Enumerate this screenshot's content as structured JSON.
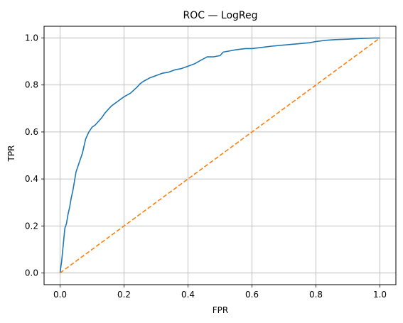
{
  "chart_data": {
    "type": "line",
    "title": "ROC — LogReg",
    "xlabel": "FPR",
    "ylabel": "TPR",
    "xlim": [
      -0.05,
      1.05
    ],
    "ylim": [
      -0.05,
      1.05
    ],
    "xticks": [
      0.0,
      0.2,
      0.4,
      0.6,
      0.8,
      1.0
    ],
    "yticks": [
      0.0,
      0.2,
      0.4,
      0.6,
      0.8,
      1.0
    ],
    "xtick_labels": [
      "0.0",
      "0.2",
      "0.4",
      "0.6",
      "0.8",
      "1.0"
    ],
    "ytick_labels": [
      "0.0",
      "0.2",
      "0.4",
      "0.6",
      "0.8",
      "1.0"
    ],
    "grid": true,
    "series": [
      {
        "color": "#1f77b4",
        "style": "solid",
        "x": [
          0.0,
          0.005,
          0.01,
          0.015,
          0.02,
          0.025,
          0.03,
          0.035,
          0.04,
          0.045,
          0.05,
          0.055,
          0.06,
          0.07,
          0.08,
          0.09,
          0.1,
          0.11,
          0.12,
          0.13,
          0.14,
          0.15,
          0.16,
          0.17,
          0.18,
          0.19,
          0.2,
          0.22,
          0.24,
          0.25,
          0.26,
          0.28,
          0.3,
          0.32,
          0.34,
          0.36,
          0.38,
          0.4,
          0.42,
          0.44,
          0.46,
          0.48,
          0.5,
          0.51,
          0.53,
          0.55,
          0.58,
          0.6,
          0.63,
          0.66,
          0.7,
          0.74,
          0.78,
          0.8,
          0.83,
          0.86,
          0.9,
          0.94,
          0.98,
          1.0
        ],
        "y": [
          0.0,
          0.05,
          0.12,
          0.19,
          0.21,
          0.25,
          0.28,
          0.32,
          0.35,
          0.39,
          0.43,
          0.45,
          0.47,
          0.51,
          0.57,
          0.6,
          0.62,
          0.63,
          0.645,
          0.66,
          0.68,
          0.695,
          0.71,
          0.72,
          0.73,
          0.74,
          0.75,
          0.765,
          0.79,
          0.805,
          0.815,
          0.83,
          0.84,
          0.85,
          0.855,
          0.865,
          0.87,
          0.88,
          0.89,
          0.905,
          0.92,
          0.92,
          0.925,
          0.94,
          0.945,
          0.95,
          0.955,
          0.955,
          0.96,
          0.965,
          0.97,
          0.975,
          0.98,
          0.985,
          0.99,
          0.993,
          0.995,
          0.998,
          1.0,
          1.0
        ]
      },
      {
        "color": "#ff7f0e",
        "style": "dashed",
        "x": [
          0.0,
          1.0
        ],
        "y": [
          0.0,
          1.0
        ]
      }
    ]
  }
}
